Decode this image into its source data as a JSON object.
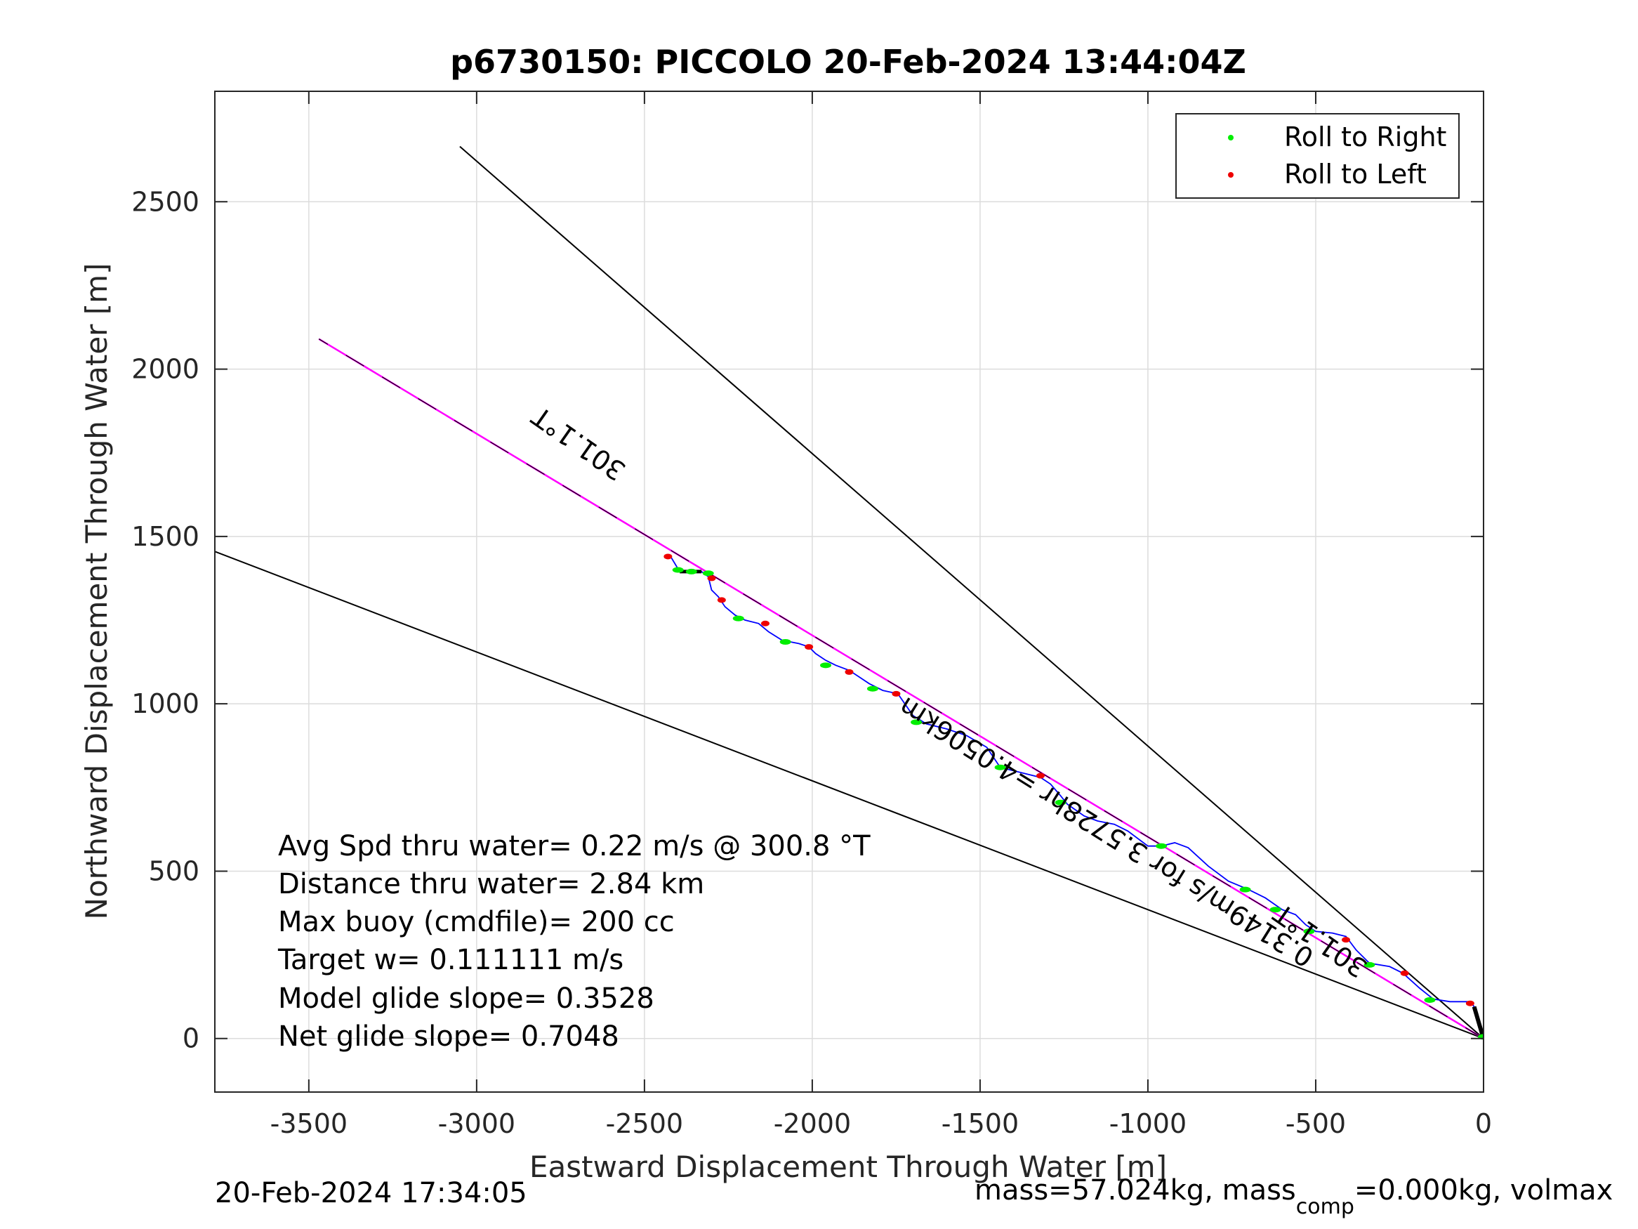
{
  "chart_data": {
    "type": "line",
    "title": "p6730150: PICCOLO 20-Feb-2024 13:44:04Z",
    "xlabel": "Eastward Displacement Through Water [m]",
    "ylabel": "Northward Displacement Through Water [m]",
    "xlim": [
      -3780,
      0
    ],
    "ylim": [
      -160,
      2830
    ],
    "xticks": [
      -3500,
      -3000,
      -2500,
      -2000,
      -1500,
      -1000,
      -500,
      0
    ],
    "xtick_labels": [
      "-3500",
      "-3000",
      "-2500",
      "-2000",
      "-1500",
      "-1000",
      "-500",
      "0"
    ],
    "yticks": [
      0,
      500,
      1000,
      1500,
      2000,
      2500
    ],
    "ytick_labels": [
      "0",
      "500",
      "1000",
      "1500",
      "2000",
      "2500"
    ],
    "grid": true,
    "legend_position": "top-right",
    "legend": [
      {
        "label": "Roll to Right",
        "color": "#00ee00"
      },
      {
        "label": "Roll to Left",
        "color": "#ee0000"
      }
    ],
    "colors": {
      "track": "#0000ff",
      "heading_line": "#ff00ff",
      "cone_lines": "#000000",
      "roll_right": "#00ee00",
      "roll_left": "#ee0000"
    },
    "heading_line": {
      "x": [
        0,
        -3470
      ],
      "y": [
        0,
        2090
      ]
    },
    "cone_lines": [
      {
        "x": [
          0,
          -3050
        ],
        "y": [
          0,
          2665
        ]
      },
      {
        "x": [
          0,
          -3780
        ],
        "y": [
          0,
          1455
        ]
      }
    ],
    "track": {
      "x": [
        0,
        -5,
        -12,
        -20,
        -28,
        -35,
        -45,
        -60,
        -100,
        -150,
        -190,
        -240,
        -280,
        -340,
        -380,
        -410,
        -450,
        -500,
        -530,
        -560,
        -600,
        -650,
        -700,
        -760,
        -820,
        -880,
        -920,
        -960,
        -1000,
        -1060,
        -1100,
        -1150,
        -1190,
        -1240,
        -1260,
        -1290,
        -1320,
        -1360,
        -1400,
        -1440,
        -1480,
        -1540,
        -1600,
        -1660,
        -1700,
        -1745,
        -1790,
        -1830,
        -1860,
        -1890,
        -1930,
        -1960,
        -1990,
        -2010,
        -2040,
        -2090,
        -2130,
        -2160,
        -2200,
        -2230,
        -2260,
        -2280,
        -2300,
        -2310,
        -2330,
        -2350,
        -2370,
        -2395,
        -2410,
        -2425
      ],
      "y": [
        0,
        15,
        40,
        70,
        95,
        105,
        110,
        110,
        110,
        118,
        150,
        195,
        215,
        225,
        265,
        305,
        315,
        320,
        340,
        370,
        385,
        420,
        445,
        470,
        515,
        570,
        585,
        575,
        575,
        620,
        640,
        650,
        665,
        700,
        725,
        760,
        780,
        790,
        800,
        810,
        870,
        905,
        925,
        940,
        965,
        1030,
        1040,
        1060,
        1080,
        1100,
        1115,
        1130,
        1150,
        1170,
        1180,
        1190,
        1215,
        1240,
        1250,
        1265,
        1290,
        1320,
        1340,
        1380,
        1395,
        1395,
        1395,
        1395,
        1420,
        1445
      ]
    },
    "roll_right_points": {
      "x": [
        -2400,
        -2360,
        -2310,
        -2220,
        -2080,
        -1960,
        -1820,
        -1690,
        -1440,
        -1260,
        -960,
        -710,
        -620,
        -520,
        -340,
        -160,
        0
      ],
      "y": [
        1400,
        1395,
        1390,
        1255,
        1185,
        1115,
        1045,
        945,
        810,
        705,
        575,
        445,
        385,
        320,
        220,
        115,
        5
      ]
    },
    "roll_left_points": {
      "x": [
        -2430,
        -2300,
        -2270,
        -2140,
        -2010,
        -1890,
        -1750,
        -1320,
        -410,
        -235,
        -40
      ],
      "y": [
        1440,
        1375,
        1310,
        1240,
        1170,
        1095,
        1030,
        785,
        295,
        195,
        105
      ]
    },
    "annotations": [
      {
        "text": "301.1°T",
        "x": -2680,
        "y": 1800,
        "rotation": 215
      },
      {
        "text": "0.3149m/s for 3.5728hr =4.0506km",
        "x": -1110,
        "y": 640,
        "rotation": 212
      },
      {
        "text": "301.1°T",
        "x": -470,
        "y": 315,
        "rotation": 215
      }
    ]
  },
  "info_box": {
    "avg_speed": "Avg Spd thru water=  0.22 m/s @ 300.8 °T",
    "distance": "Distance thru water=  2.84 km",
    "max_buoy": "Max buoy (cmdfile)= 200 cc",
    "target_w": "Target w= 0.111111 m/s",
    "model_glide": "Model glide slope= 0.3528",
    "net_glide": "Net glide slope= 0.7048"
  },
  "footer": {
    "timestamp": "20-Feb-2024 17:34:05",
    "mass_prefix": "mass=57.024kg, mass",
    "mass_sub": "comp",
    "mass_suffix": "=0.000kg, volmax"
  }
}
